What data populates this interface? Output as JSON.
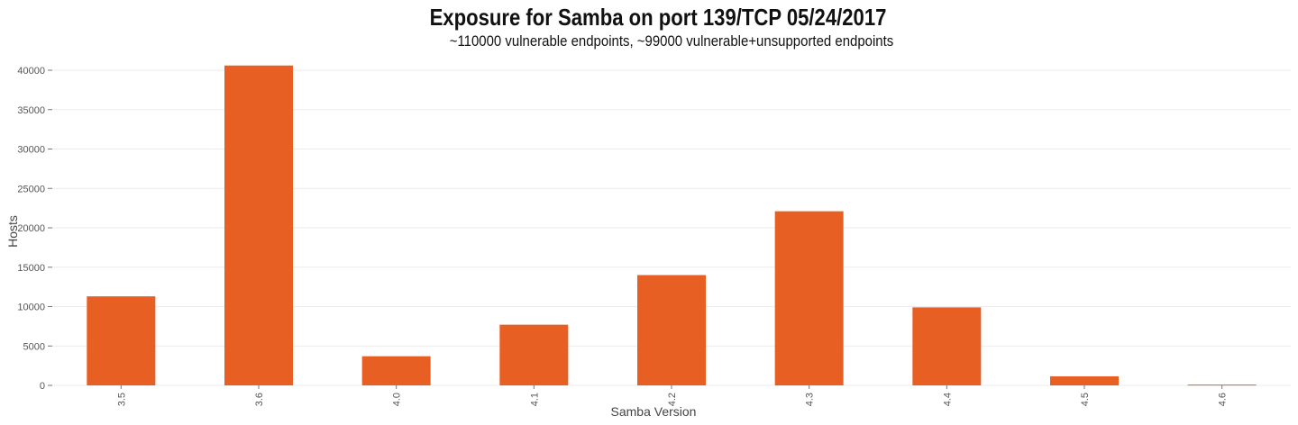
{
  "chart_data": {
    "type": "bar",
    "title": "Exposure for Samba on port 139/TCP 05/24/2017",
    "subtitle": "~110000 vulnerable endpoints, ~99000 vulnerable+unsupported endpoints",
    "xlabel": "Samba Version",
    "ylabel": "Hosts",
    "categories": [
      "3.5",
      "3.6",
      "4.0",
      "4.1",
      "4.2",
      "4.3",
      "4.4",
      "4.5",
      "4.6"
    ],
    "values": [
      11300,
      40600,
      3700,
      7700,
      14000,
      22100,
      9900,
      1150,
      100
    ],
    "ylim": [
      0,
      40000
    ],
    "yticks": [
      0,
      5000,
      10000,
      15000,
      20000,
      25000,
      30000,
      35000,
      40000
    ],
    "grid": true,
    "bar_color": "#e85f24",
    "legend": "none"
  }
}
